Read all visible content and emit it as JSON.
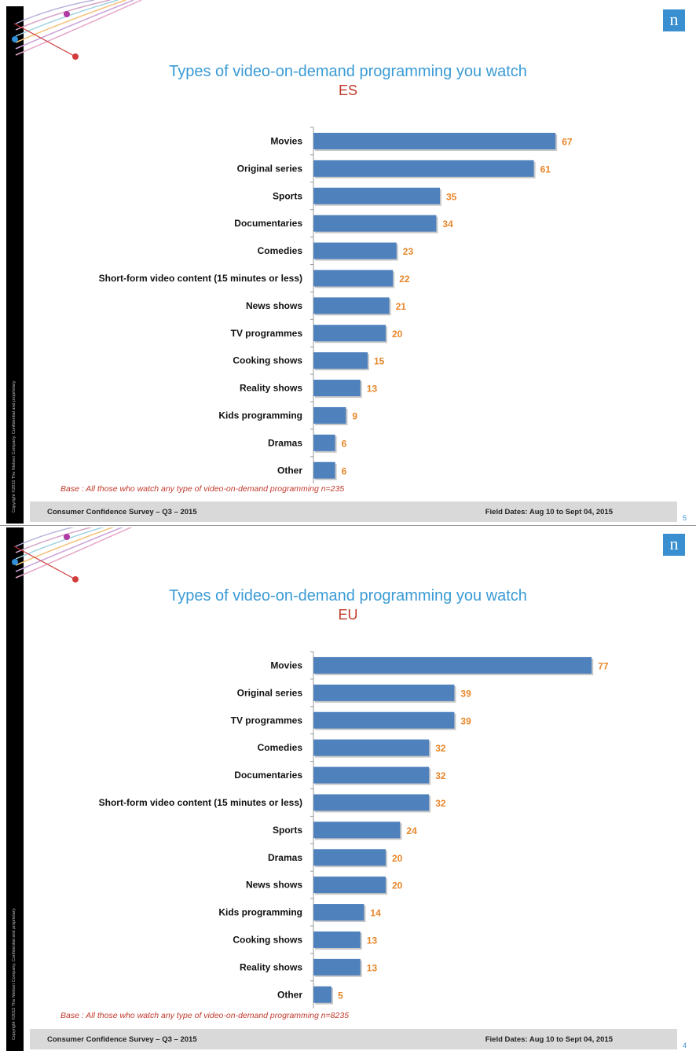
{
  "slides": [
    {
      "title": "Types of video-on-demand programming you watch",
      "subtitle": "ES",
      "base_note": "Base : All those who watch any type of video-on-demand programming n=235",
      "footer_left": "Consumer Confidence Survey – Q3 – 2015",
      "footer_right": "Field Dates: Aug 10 to Sept 04, 2015",
      "page_number": "5",
      "copyright": "Copyright ©2015 The Nielsen Company. Confidential and proprietary.",
      "logo": "n"
    },
    {
      "title": "Types of video-on-demand programming you watch",
      "subtitle": "EU",
      "base_note": "Base : All those who watch any type of video-on-demand programming n=8235",
      "footer_left": "Consumer Confidence Survey – Q3 – 2015",
      "footer_right": "Field Dates: Aug 10 to Sept 04, 2015",
      "page_number": "4",
      "copyright": "Copyright ©2015 The Nielsen Company. Confidential and proprietary.",
      "logo": "n"
    }
  ],
  "colors": {
    "bar": "#4f81bd",
    "value_label": "#e8862a",
    "title": "#3a9bd5",
    "subtitle": "#c0392b",
    "logo": "#3a8fd0"
  },
  "chart_data": [
    {
      "type": "bar",
      "orientation": "horizontal",
      "title": "Types of video-on-demand programming you watch",
      "subtitle": "ES",
      "categories": [
        "Movies",
        "Original series",
        "Sports",
        "Documentaries",
        "Comedies",
        "Short-form video content (15 minutes or less)",
        "News shows",
        "TV programmes",
        "Cooking shows",
        "Reality shows",
        "Kids programming",
        "Dramas",
        "Other"
      ],
      "values": [
        67,
        61,
        35,
        34,
        23,
        22,
        21,
        20,
        15,
        13,
        9,
        6,
        6
      ],
      "xlim": [
        0,
        80
      ],
      "grid": false
    },
    {
      "type": "bar",
      "orientation": "horizontal",
      "title": "Types of video-on-demand programming you watch",
      "subtitle": "EU",
      "categories": [
        "Movies",
        "Original series",
        "TV programmes",
        "Comedies",
        "Documentaries",
        "Short-form video content (15 minutes or less)",
        "Sports",
        "Dramas",
        "News shows",
        "Kids programming",
        "Cooking shows",
        "Reality shows",
        "Other"
      ],
      "values": [
        77,
        39,
        39,
        32,
        32,
        32,
        24,
        20,
        20,
        14,
        13,
        13,
        5
      ],
      "xlim": [
        0,
        80
      ],
      "grid": false
    }
  ]
}
